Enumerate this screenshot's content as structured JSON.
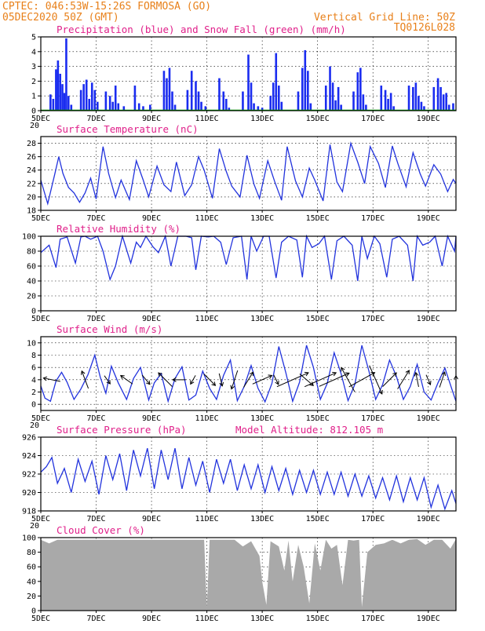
{
  "header": {
    "line1_left": "CPTEC:   046:53W-15:26S  FORMOSA (GO)",
    "line2_left": "05DEC2020 50Z (GMT)",
    "line2_right": "Vertical Grid Line: 50Z",
    "line3_right": "TQ0126L028"
  },
  "colors": {
    "header": "#e8801a",
    "title": "#e0208a",
    "precip": "#1a2cf0",
    "snow": "#00aa00",
    "line": "#2233dd",
    "cloud": "#a9a9a9"
  },
  "x_axis": {
    "labels": [
      "5DEC",
      "7DEC",
      "9DEC",
      "11DEC",
      "13DEC",
      "15DEC",
      "17DEC",
      "19DEC"
    ],
    "label_days": [
      0,
      2,
      4,
      6,
      8,
      10,
      12,
      14
    ],
    "range_days": [
      0,
      15
    ]
  },
  "chart_data": [
    {
      "type": "bar",
      "title": "Precipitation (blue) and Snow Fall (green) (mm/h)",
      "ylim": [
        0,
        5
      ],
      "yticks": [
        "0",
        "1",
        "2",
        "3",
        "4",
        "5"
      ],
      "xlabel_truncated": "20",
      "series": [
        {
          "name": "Precipitation",
          "x_days": [
            0.35,
            0.45,
            0.55,
            0.62,
            0.7,
            0.78,
            0.85,
            0.92,
            1.0,
            1.1,
            1.45,
            1.55,
            1.65,
            1.75,
            1.85,
            1.95,
            2.05,
            2.35,
            2.5,
            2.6,
            2.7,
            2.8,
            3.0,
            3.4,
            3.55,
            3.7,
            3.95,
            4.45,
            4.55,
            4.65,
            4.75,
            4.85,
            5.3,
            5.45,
            5.6,
            5.7,
            5.8,
            5.95,
            6.45,
            6.6,
            6.7,
            6.8,
            7.3,
            7.5,
            7.6,
            7.7,
            7.85,
            8.0,
            8.3,
            8.4,
            8.5,
            8.6,
            8.7,
            9.3,
            9.45,
            9.55,
            9.65,
            9.75,
            10.3,
            10.45,
            10.55,
            10.65,
            10.75,
            10.85,
            11.3,
            11.45,
            11.55,
            11.65,
            11.75,
            12.3,
            12.45,
            12.55,
            12.65,
            12.75,
            13.3,
            13.45,
            13.55,
            13.65,
            13.75,
            13.85,
            14.2,
            14.35,
            14.45,
            14.55,
            14.65,
            14.75,
            14.9
          ],
          "values": [
            1.1,
            0.8,
            2.8,
            3.4,
            2.5,
            1.8,
            1.2,
            4.9,
            1.0,
            0.4,
            1.4,
            1.8,
            2.1,
            0.8,
            1.9,
            1.4,
            0.6,
            1.3,
            1.0,
            0.6,
            1.7,
            0.5,
            0.3,
            1.7,
            0.5,
            0.3,
            0.4,
            2.7,
            2.2,
            2.9,
            1.3,
            0.4,
            1.4,
            2.7,
            2.0,
            1.3,
            0.6,
            0.3,
            2.2,
            1.3,
            0.8,
            0.2,
            1.3,
            3.8,
            1.9,
            0.5,
            0.3,
            0.2,
            1.0,
            1.9,
            3.9,
            1.7,
            0.6,
            1.3,
            2.9,
            4.1,
            2.7,
            0.5,
            1.7,
            3.0,
            1.9,
            0.7,
            1.6,
            0.4,
            1.3,
            2.6,
            2.9,
            1.1,
            0.4,
            1.7,
            1.4,
            0.8,
            1.2,
            0.3,
            1.7,
            1.6,
            1.9,
            1.0,
            0.6,
            0.3,
            1.6,
            2.2,
            1.6,
            1.1,
            1.2,
            0.4,
            0.5
          ]
        },
        {
          "name": "Snow Fall",
          "x_days": [
            0,
            15
          ],
          "values": [
            0,
            0
          ]
        }
      ]
    },
    {
      "type": "line",
      "title": "Surface Temperature (nC)",
      "ylim": [
        18,
        29
      ],
      "yticks": [
        "18",
        "20",
        "22",
        "24",
        "26",
        "28"
      ],
      "xlabel_truncated": "",
      "series": [
        {
          "name": "Temperature",
          "x_days": [
            0,
            0.25,
            0.5,
            0.65,
            0.8,
            1.0,
            1.2,
            1.4,
            1.6,
            1.8,
            2.0,
            2.25,
            2.45,
            2.7,
            2.9,
            3.2,
            3.45,
            3.7,
            3.9,
            4.2,
            4.45,
            4.7,
            4.9,
            5.2,
            5.45,
            5.7,
            5.9,
            6.2,
            6.45,
            6.7,
            6.9,
            7.2,
            7.45,
            7.7,
            7.9,
            8.2,
            8.45,
            8.7,
            8.9,
            9.2,
            9.45,
            9.7,
            9.9,
            10.2,
            10.45,
            10.7,
            10.9,
            11.2,
            11.45,
            11.7,
            11.9,
            12.2,
            12.45,
            12.7,
            12.9,
            13.2,
            13.45,
            13.7,
            13.9,
            14.2,
            14.45,
            14.7,
            14.9,
            15.0
          ],
          "values": [
            22.5,
            19.0,
            23.3,
            26.0,
            23.5,
            21.4,
            20.6,
            19.2,
            20.6,
            22.8,
            19.7,
            27.5,
            23.5,
            19.9,
            22.5,
            19.6,
            25.4,
            22.5,
            20.0,
            24.6,
            21.8,
            20.8,
            25.2,
            20.2,
            21.8,
            26.0,
            24.0,
            19.8,
            27.2,
            23.8,
            21.6,
            20.0,
            26.2,
            21.9,
            19.8,
            25.4,
            22.3,
            19.5,
            27.5,
            22.4,
            20.0,
            24.3,
            22.5,
            19.4,
            27.8,
            22.2,
            20.8,
            28.0,
            25.2,
            22.0,
            27.5,
            25.0,
            21.4,
            27.6,
            25.0,
            21.5,
            26.6,
            23.5,
            21.6,
            24.8,
            23.4,
            20.8,
            22.6,
            22.0
          ]
        }
      ]
    },
    {
      "type": "line",
      "title": "Relative Humidity (%)",
      "ylim": [
        0,
        100
      ],
      "yticks": [
        "0",
        "20",
        "40",
        "60",
        "80",
        "100"
      ],
      "xlabel_truncated": "",
      "series": [
        {
          "name": "Humidity",
          "x_days": [
            0,
            0.3,
            0.55,
            0.7,
            0.95,
            1.25,
            1.45,
            1.6,
            1.8,
            2.05,
            2.25,
            2.5,
            2.7,
            2.95,
            3.25,
            3.45,
            3.6,
            3.8,
            4.05,
            4.25,
            4.5,
            4.7,
            4.95,
            5.25,
            5.45,
            5.6,
            5.8,
            6.05,
            6.25,
            6.5,
            6.7,
            6.95,
            7.25,
            7.45,
            7.6,
            7.8,
            8.05,
            8.25,
            8.5,
            8.7,
            8.95,
            9.25,
            9.45,
            9.6,
            9.8,
            10.05,
            10.25,
            10.5,
            10.7,
            10.95,
            11.25,
            11.45,
            11.6,
            11.8,
            12.05,
            12.25,
            12.5,
            12.7,
            12.95,
            13.25,
            13.45,
            13.6,
            13.8,
            14.05,
            14.25,
            14.5,
            14.7,
            14.95,
            15.0
          ],
          "values": [
            78,
            88,
            58,
            96,
            99,
            64,
            99,
            100,
            96,
            100,
            80,
            42,
            60,
            100,
            64,
            92,
            85,
            100,
            86,
            78,
            100,
            60,
            100,
            100,
            98,
            55,
            100,
            99,
            100,
            92,
            62,
            98,
            100,
            42,
            100,
            80,
            100,
            100,
            44,
            92,
            100,
            95,
            45,
            100,
            85,
            90,
            100,
            42,
            94,
            100,
            88,
            40,
            100,
            70,
            100,
            90,
            45,
            96,
            100,
            88,
            40,
            100,
            88,
            92,
            100,
            60,
            100,
            80,
            100
          ]
        }
      ]
    },
    {
      "type": "line",
      "title": "Surface Wind (m/s)",
      "ylim": [
        -1,
        11
      ],
      "yticks": [
        "0",
        "2",
        "4",
        "6",
        "8",
        "10"
      ],
      "xlabel_truncated": "20",
      "series": [
        {
          "name": "Wind speed",
          "x_days": [
            0,
            0.15,
            0.35,
            0.55,
            0.75,
            0.95,
            1.2,
            1.45,
            1.7,
            1.95,
            2.15,
            2.35,
            2.55,
            2.8,
            3.1,
            3.35,
            3.6,
            3.9,
            4.1,
            4.35,
            4.6,
            4.85,
            5.1,
            5.35,
            5.6,
            5.85,
            6.1,
            6.35,
            6.6,
            6.85,
            7.1,
            7.35,
            7.6,
            7.85,
            8.1,
            8.35,
            8.6,
            8.85,
            9.1,
            9.35,
            9.6,
            9.85,
            10.1,
            10.35,
            10.6,
            10.85,
            11.1,
            11.35,
            11.6,
            11.85,
            12.1,
            12.35,
            12.6,
            12.85,
            13.1,
            13.35,
            13.6,
            13.85,
            14.1,
            14.35,
            14.6,
            14.85,
            15.0
          ],
          "values": [
            3,
            1,
            0.5,
            3.8,
            5.2,
            3.6,
            0.8,
            2.5,
            4.8,
            8.0,
            4.4,
            1.8,
            6.2,
            3.5,
            0.8,
            4.2,
            6.0,
            0.7,
            3.5,
            5.0,
            0.5,
            4.2,
            6.1,
            0.7,
            1.5,
            5.4,
            2.6,
            0.8,
            4.7,
            7.2,
            0.6,
            2.9,
            6.3,
            2.6,
            0.4,
            3.4,
            9.4,
            5.2,
            0.5,
            3.6,
            9.6,
            6.0,
            0.8,
            3.4,
            8.4,
            5.0,
            0.6,
            3.3,
            9.6,
            5.5,
            0.8,
            3.2,
            7.2,
            4.5,
            0.8,
            2.9,
            6.5,
            2.0,
            0.7,
            3.5,
            5.9,
            2.5,
            0.5
          ]
        }
      ],
      "arrows": {
        "x_days": [
          0.4,
          1.6,
          2.4,
          3.1,
          3.8,
          4.5,
          5.0,
          5.5,
          6.1,
          6.5,
          7.0,
          7.5,
          8.0,
          8.5,
          9.1,
          9.6,
          10.1,
          10.6,
          11.1,
          11.6,
          12.1,
          12.6,
          13.1,
          13.6,
          14.0,
          14.5,
          15.0
        ],
        "speed": [
          3.8,
          4.2,
          1.6,
          3.0,
          2.2,
          4.5,
          2.5,
          1.6,
          3.5,
          2.5,
          4.5,
          4.0,
          5.0,
          1.8,
          9.0,
          4.0,
          9.0,
          8.5,
          7.0,
          7.5,
          8.0,
          4.5,
          5.2,
          3.0,
          1.8,
          3.5,
          1.0
        ],
        "u": [
          -1,
          -0.3,
          0.5,
          -0.7,
          0.5,
          -0.6,
          -1,
          -0.4,
          0.6,
          0.2,
          -0.3,
          0.5,
          0.9,
          0.4,
          0.9,
          0.7,
          0.9,
          0.9,
          -0.5,
          0.9,
          0.4,
          0.7,
          0.5,
          -0.2,
          0.4,
          0.3,
          0.0
        ],
        "v": [
          0.2,
          0.8,
          -0.7,
          0.5,
          -0.6,
          0.6,
          0.0,
          -0.7,
          -0.6,
          -0.8,
          -0.9,
          0.8,
          0.4,
          -0.8,
          0.4,
          -0.6,
          0.4,
          0.4,
          0.9,
          0.5,
          -0.9,
          0.7,
          0.8,
          1.0,
          -0.9,
          0.9,
          1.0
        ]
      }
    },
    {
      "type": "line",
      "title": "Surface Pressure (hPa)",
      "annotation": "Model Altitude: 812.105 m",
      "ylim": [
        918,
        926
      ],
      "yticks": [
        "918",
        "920",
        "922",
        "924",
        "926"
      ],
      "xlabel_truncated": "20",
      "series": [
        {
          "name": "Pressure",
          "x_days": [
            0,
            0.2,
            0.4,
            0.6,
            0.85,
            1.1,
            1.35,
            1.6,
            1.85,
            2.1,
            2.35,
            2.6,
            2.85,
            3.1,
            3.35,
            3.6,
            3.85,
            4.1,
            4.35,
            4.6,
            4.85,
            5.1,
            5.35,
            5.6,
            5.85,
            6.1,
            6.35,
            6.6,
            6.85,
            7.1,
            7.35,
            7.6,
            7.85,
            8.1,
            8.35,
            8.6,
            8.85,
            9.1,
            9.35,
            9.6,
            9.85,
            10.1,
            10.35,
            10.6,
            10.85,
            11.1,
            11.35,
            11.6,
            11.85,
            12.1,
            12.35,
            12.6,
            12.85,
            13.1,
            13.35,
            13.6,
            13.85,
            14.1,
            14.35,
            14.6,
            14.85,
            15.0
          ],
          "values": [
            922.2,
            922.8,
            923.8,
            921.0,
            922.6,
            920.0,
            923.6,
            921.2,
            923.4,
            919.8,
            924.0,
            921.4,
            924.2,
            920.2,
            924.6,
            921.8,
            924.8,
            920.4,
            924.6,
            921.4,
            924.8,
            920.4,
            923.8,
            920.8,
            923.4,
            920.0,
            923.6,
            921.0,
            923.6,
            920.2,
            923.0,
            920.4,
            923.0,
            920.0,
            922.8,
            920.2,
            922.6,
            919.8,
            922.4,
            920.0,
            922.4,
            919.8,
            922.2,
            919.8,
            922.2,
            919.6,
            922.0,
            919.6,
            921.8,
            919.4,
            921.6,
            919.2,
            921.8,
            919.0,
            921.6,
            919.2,
            921.6,
            918.4,
            920.8,
            918.2,
            920.2,
            918.8
          ]
        }
      ]
    },
    {
      "type": "area",
      "title": "Cloud Cover (%)",
      "ylim": [
        0,
        100
      ],
      "yticks": [
        "0",
        "20",
        "40",
        "60",
        "80",
        "100"
      ],
      "xlabel_truncated": "",
      "series": [
        {
          "name": "Cloud cover",
          "x_days": [
            0,
            0.3,
            0.6,
            0.9,
            1.2,
            1.5,
            1.8,
            2.1,
            2.4,
            2.7,
            3.0,
            3.3,
            3.6,
            3.9,
            4.2,
            4.5,
            4.8,
            5.1,
            5.4,
            5.7,
            5.9,
            6.0,
            6.1,
            6.4,
            6.7,
            7.0,
            7.3,
            7.6,
            7.9,
            8.0,
            8.15,
            8.3,
            8.6,
            8.8,
            8.95,
            9.1,
            9.3,
            9.5,
            9.7,
            9.9,
            10.1,
            10.3,
            10.5,
            10.7,
            10.9,
            11.1,
            11.3,
            11.5,
            11.6,
            11.8,
            12.1,
            12.4,
            12.7,
            13.0,
            13.3,
            13.6,
            13.9,
            14.2,
            14.5,
            14.8,
            15.0
          ],
          "values": [
            97,
            92,
            97,
            97,
            97,
            97,
            97,
            97,
            97,
            97,
            97,
            97,
            97,
            97,
            97,
            97,
            97,
            97,
            97,
            97,
            97,
            5,
            97,
            97,
            97,
            97,
            88,
            95,
            75,
            40,
            8,
            95,
            88,
            55,
            96,
            40,
            90,
            60,
            10,
            92,
            55,
            97,
            85,
            90,
            35,
            97,
            96,
            97,
            5,
            80,
            90,
            92,
            97,
            92,
            97,
            98,
            90,
            97,
            97,
            85,
            98
          ]
        }
      ]
    }
  ]
}
